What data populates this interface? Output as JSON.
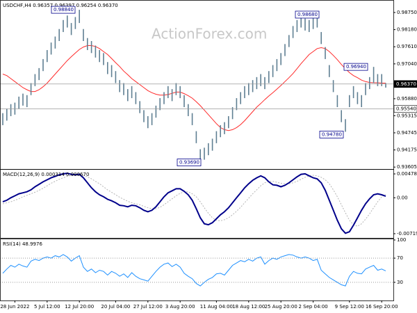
{
  "chart_data": [
    {
      "type": "range",
      "title": "USDCHF,H4  0.96357 0.96397 0.96254 0.96370",
      "watermark": "ActionForex.com",
      "color": "#5f7f92",
      "categories": [
        null,
        null,
        null,
        "28 Jun 2022",
        null,
        null,
        null,
        null,
        null,
        null,
        null,
        "5 Jul 12:00",
        null,
        null,
        null,
        null,
        null,
        null,
        null,
        "12 Jul 20:00",
        null,
        null,
        null,
        null,
        null,
        null,
        null,
        null,
        "20 Jul 04:00",
        null,
        null,
        null,
        null,
        null,
        null,
        null,
        "27 Jul 12:00",
        null,
        null,
        null,
        null,
        null,
        null,
        null,
        "3 Aug 20:00",
        null,
        null,
        null,
        null,
        null,
        null,
        null,
        null,
        "11 Aug 04:00",
        null,
        null,
        null,
        null,
        null,
        null,
        null,
        "18 Aug 12:00",
        null,
        null,
        null,
        null,
        null,
        null,
        null,
        "25 Aug 20:00",
        null,
        null,
        null,
        null,
        null,
        null,
        null,
        "2 Sep 04:00",
        null,
        null,
        null,
        null,
        null,
        null,
        null,
        null,
        "9 Sep 12:00",
        null,
        null,
        null,
        null,
        null,
        null,
        null,
        "16 Sep 20:00",
        null
      ],
      "high": [
        0.954,
        0.9555,
        0.957,
        0.9575,
        0.9595,
        0.9605,
        0.96,
        0.964,
        0.967,
        0.969,
        0.972,
        0.975,
        0.9775,
        0.9795,
        0.982,
        0.985,
        0.9865,
        0.984,
        0.986,
        0.9884,
        0.982,
        0.979,
        0.978,
        0.9765,
        0.975,
        0.974,
        0.971,
        0.97,
        0.968,
        0.965,
        0.964,
        0.962,
        0.963,
        0.961,
        0.958,
        0.955,
        0.953,
        0.954,
        0.9565,
        0.959,
        0.961,
        0.963,
        0.962,
        0.964,
        0.963,
        0.96,
        0.957,
        0.954,
        0.948,
        0.942,
        0.9425,
        0.944,
        0.9455,
        0.948,
        0.95,
        0.951,
        0.953,
        0.956,
        0.959,
        0.961,
        0.963,
        0.964,
        0.965,
        0.966,
        0.967,
        0.966,
        0.968,
        0.97,
        0.972,
        0.974,
        0.977,
        0.98,
        0.983,
        0.985,
        0.9868,
        0.9855,
        0.985,
        0.986,
        0.9865,
        0.981,
        0.976,
        0.97,
        0.965,
        0.96,
        0.955,
        0.952,
        0.96,
        0.963,
        0.961,
        0.96,
        0.964,
        0.966,
        0.9694,
        0.967,
        0.967,
        0.964
      ],
      "low": [
        0.95,
        0.9515,
        0.953,
        0.9535,
        0.9555,
        0.9565,
        0.956,
        0.96,
        0.963,
        0.965,
        0.968,
        0.971,
        0.9735,
        0.9755,
        0.978,
        0.981,
        0.9825,
        0.98,
        0.982,
        0.984,
        0.978,
        0.975,
        0.974,
        0.9725,
        0.971,
        0.97,
        0.967,
        0.966,
        0.964,
        0.961,
        0.96,
        0.958,
        0.959,
        0.957,
        0.954,
        0.951,
        0.949,
        0.95,
        0.9525,
        0.955,
        0.957,
        0.959,
        0.958,
        0.96,
        0.959,
        0.956,
        0.953,
        0.95,
        0.944,
        0.9369,
        0.9385,
        0.94,
        0.9415,
        0.944,
        0.946,
        0.947,
        0.949,
        0.952,
        0.955,
        0.957,
        0.959,
        0.96,
        0.961,
        0.962,
        0.963,
        0.962,
        0.964,
        0.966,
        0.968,
        0.97,
        0.973,
        0.976,
        0.979,
        0.981,
        0.9825,
        0.9815,
        0.981,
        0.982,
        0.9825,
        0.977,
        0.972,
        0.966,
        0.961,
        0.956,
        0.951,
        0.9478,
        0.956,
        0.959,
        0.957,
        0.956,
        0.96,
        0.962,
        0.964,
        0.963,
        0.963,
        0.9625
      ],
      "ma": {
        "color": "#ff2a2a",
        "values": [
          0.967,
          0.9665,
          0.9655,
          0.9645,
          0.9635,
          0.9625,
          0.9618,
          0.9612,
          0.9612,
          0.9618,
          0.9628,
          0.964,
          0.9655,
          0.967,
          0.9685,
          0.97,
          0.9715,
          0.9728,
          0.974,
          0.9752,
          0.976,
          0.9765,
          0.9765,
          0.9762,
          0.9755,
          0.9745,
          0.9735,
          0.9722,
          0.9708,
          0.9695,
          0.968,
          0.9668,
          0.9655,
          0.9645,
          0.9635,
          0.9625,
          0.9615,
          0.9608,
          0.9603,
          0.96,
          0.96,
          0.9602,
          0.9606,
          0.961,
          0.961,
          0.9605,
          0.9598,
          0.959,
          0.9578,
          0.9565,
          0.955,
          0.9535,
          0.952,
          0.9505,
          0.9492,
          0.9485,
          0.9482,
          0.9485,
          0.9492,
          0.9502,
          0.9515,
          0.953,
          0.9545,
          0.956,
          0.9572,
          0.9585,
          0.9597,
          0.9608,
          0.962,
          0.9632,
          0.9645,
          0.9658,
          0.9672,
          0.9688,
          0.9705,
          0.972,
          0.9735,
          0.9745,
          0.9755,
          0.9758,
          0.9755,
          0.9745,
          0.9732,
          0.9718,
          0.9702,
          0.9688,
          0.9675,
          0.9665,
          0.9658,
          0.965,
          0.9645,
          0.9642,
          0.9641,
          0.9641,
          0.964,
          0.964
        ]
      },
      "ylim": [
        0.9354,
        0.9912
      ],
      "yticks": [
        {
          "value": 0.9875,
          "label": "0.98750"
        },
        {
          "value": 0.9818,
          "label": "0.98180"
        },
        {
          "value": 0.9761,
          "label": "0.97610"
        },
        {
          "value": 0.9704,
          "label": "0.97040"
        },
        {
          "value": 0.9588,
          "label": "0.95880"
        },
        0.95315,
        0.94745,
        0.94175,
        0.93605
      ],
      "price_line": {
        "value": 0.9637,
        "label": "0.96370"
      },
      "level_line": {
        "value": 0.9554,
        "label": "0.95540"
      },
      "annotations": [
        {
          "value": 0.9884,
          "label": "0.98840"
        },
        {
          "value": 0.9868,
          "label": "0.98680"
        },
        {
          "value": 0.9694,
          "label": "0.96940"
        },
        {
          "value": 0.9478,
          "label": "0.94780"
        },
        {
          "value": 0.9369,
          "label": "0.93690"
        }
      ]
    },
    {
      "type": "line",
      "title": "MACD(12,26,9) 0.000314 0.000670",
      "series": [
        {
          "color": "#00008b",
          "values": [
            -0.0008,
            -0.0005,
            0.0,
            0.0004,
            0.0008,
            0.001,
            0.0012,
            0.0016,
            0.0022,
            0.0027,
            0.0032,
            0.0036,
            0.004,
            0.0043,
            0.0046,
            0.0048,
            0.0049,
            0.0047,
            0.0046,
            0.0047,
            0.004,
            0.003,
            0.002,
            0.0012,
            0.0006,
            0.0002,
            -0.0003,
            -0.0006,
            -0.001,
            -0.0015,
            -0.0016,
            -0.0018,
            -0.0015,
            -0.0016,
            -0.002,
            -0.0025,
            -0.0028,
            -0.0025,
            -0.0018,
            -0.0008,
            0.0002,
            0.001,
            0.0014,
            0.0018,
            0.0018,
            0.0013,
            0.0006,
            -0.0005,
            -0.0022,
            -0.004,
            -0.0052,
            -0.0054,
            -0.005,
            -0.0042,
            -0.0034,
            -0.0028,
            -0.002,
            -0.001,
            0.0,
            0.001,
            0.002,
            0.0028,
            0.0035,
            0.004,
            0.0044,
            0.004,
            0.0032,
            0.0026,
            0.0025,
            0.0022,
            0.0025,
            0.003,
            0.0036,
            0.0042,
            0.0047,
            0.0048,
            0.0044,
            0.004,
            0.0038,
            0.003,
            0.0015,
            -0.0005,
            -0.0025,
            -0.0045,
            -0.0062,
            -0.0071,
            -0.0068,
            -0.0055,
            -0.004,
            -0.0025,
            -0.0012,
            -0.0002,
            0.0006,
            0.0008,
            0.0006,
            0.000314
          ]
        },
        {
          "color": "#b4b4b4",
          "dash": true,
          "values": [
            -0.0012,
            -0.001,
            -0.0008,
            -0.0005,
            -0.0002,
            0.0002,
            0.0005,
            0.0008,
            0.0011,
            0.0015,
            0.0019,
            0.0024,
            0.0029,
            0.0033,
            0.0037,
            0.004,
            0.0043,
            0.0045,
            0.0046,
            0.0046,
            0.0045,
            0.0042,
            0.0038,
            0.0033,
            0.0028,
            0.0022,
            0.0016,
            0.0011,
            0.0006,
            0.0001,
            -0.0003,
            -0.0007,
            -0.001,
            -0.0012,
            -0.0014,
            -0.0017,
            -0.002,
            -0.0022,
            -0.0022,
            -0.0019,
            -0.0014,
            -0.0008,
            -0.0002,
            0.0004,
            0.0009,
            0.0012,
            0.0012,
            0.0008,
            0.0002,
            -0.0008,
            -0.002,
            -0.0031,
            -0.004,
            -0.0045,
            -0.0046,
            -0.0044,
            -0.004,
            -0.0034,
            -0.0027,
            -0.0019,
            -0.001,
            -0.0001,
            0.0008,
            0.0016,
            0.0024,
            0.003,
            0.0033,
            0.0033,
            0.0031,
            0.0029,
            0.0028,
            0.0028,
            0.003,
            0.0033,
            0.0037,
            0.0041,
            0.0044,
            0.0045,
            0.0044,
            0.0041,
            0.0036,
            0.0028,
            0.0016,
            0.0002,
            -0.0014,
            -0.003,
            -0.0045,
            -0.0054,
            -0.0057,
            -0.0052,
            -0.0043,
            -0.0032,
            -0.002,
            -0.0008,
            0.0002,
            0.00067
          ]
        }
      ],
      "ylim": [
        -0.00803,
        0.00548
      ],
      "yticks": [
        0.004781,
        {
          "value": 0,
          "label": "0.00"
        },
        -0.007191
      ]
    },
    {
      "type": "line",
      "title": "RSI(14) 48.9976",
      "series": [
        {
          "color": "#1e90ff",
          "values": [
            45,
            52,
            58,
            55,
            60,
            57,
            55,
            65,
            68,
            66,
            70,
            72,
            70,
            74,
            72,
            76,
            72,
            65,
            70,
            74,
            55,
            48,
            52,
            46,
            50,
            48,
            42,
            48,
            45,
            40,
            44,
            38,
            46,
            40,
            36,
            34,
            32,
            40,
            48,
            55,
            60,
            62,
            56,
            60,
            55,
            45,
            40,
            36,
            28,
            24,
            30,
            35,
            38,
            44,
            45,
            42,
            50,
            58,
            62,
            66,
            64,
            68,
            65,
            70,
            72,
            60,
            66,
            70,
            68,
            72,
            74,
            76,
            75,
            72,
            70,
            72,
            70,
            66,
            68,
            50,
            44,
            38,
            34,
            30,
            26,
            24,
            40,
            48,
            45,
            44,
            52,
            55,
            58,
            50,
            52,
            48.9976
          ]
        }
      ],
      "ylim": [
        0,
        100
      ],
      "yticks": [
        100,
        70,
        30
      ],
      "levels": [
        70,
        30
      ]
    }
  ]
}
